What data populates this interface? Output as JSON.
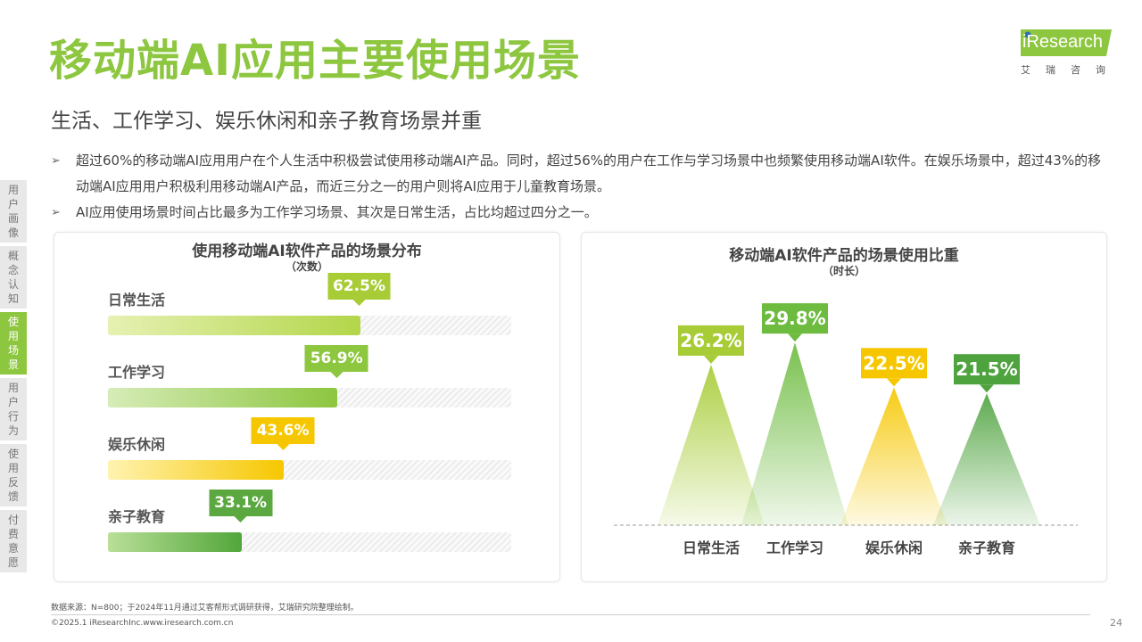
{
  "header": {
    "title": "移动端AI应用主要使用场景",
    "subtitle": "生活、工作学习、娱乐休闲和亲子教育场景并重"
  },
  "logo": {
    "brand": "iResearch",
    "cn": "艾瑞咨询"
  },
  "side_nav": [
    {
      "label": "用户画像",
      "active": false
    },
    {
      "label": "概念认知",
      "active": false
    },
    {
      "label": "使用场景",
      "active": true
    },
    {
      "label": "用户行为",
      "active": false
    },
    {
      "label": "使用反馈",
      "active": false
    },
    {
      "label": "付费意愿",
      "active": false
    }
  ],
  "bullets": [
    "超过60%的移动端AI应用用户在个人生活中积极尝试使用移动端AI产品。同时，超过56%的用户在工作与学习场景中也频繁使用移动端AI软件。在娱乐场景中，超过43%的移动端AI应用用户积极利用移动端AI产品，而近三分之一的用户则将AI应用于儿童教育场景。",
    "AI应用使用场景时间占比最多为工作学习场景、其次是日常生活，占比均超过四分之一。"
  ],
  "left_chart": {
    "title": "使用移动端AI软件产品的场景分布",
    "subtitle": "（次数）"
  },
  "right_chart": {
    "title": "移动端AI软件产品的场景使用比重",
    "subtitle": "（时长）"
  },
  "chart_data": [
    {
      "type": "bar",
      "orientation": "horizontal",
      "title": "使用移动端AI软件产品的场景分布",
      "subtitle": "（次数）",
      "categories": [
        "日常生活",
        "工作学习",
        "娱乐休闲",
        "亲子教育"
      ],
      "values": [
        62.5,
        56.9,
        43.6,
        33.1
      ],
      "value_labels": [
        "62.5%",
        "56.9%",
        "43.6%",
        "33.1%"
      ],
      "colors": [
        "#a7cc35",
        "#8dc63f",
        "#f6c700",
        "#5aa83f"
      ],
      "xlim": [
        0,
        100
      ]
    },
    {
      "type": "bar",
      "style": "triangle-peaks",
      "title": "移动端AI软件产品的场景使用比重",
      "subtitle": "（时长）",
      "categories": [
        "日常生活",
        "工作学习",
        "娱乐休闲",
        "亲子教育"
      ],
      "values": [
        26.2,
        29.8,
        22.5,
        21.5
      ],
      "value_labels": [
        "26.2%",
        "29.8%",
        "22.5%",
        "21.5%"
      ],
      "colors": [
        "#a7cc35",
        "#6dbb3f",
        "#f6c700",
        "#4fa33f"
      ],
      "ylim": [
        0,
        32
      ]
    }
  ],
  "footer": {
    "source": "数据来源：N=800；于2024年11月通过艾客帮形式调研获得，艾瑞研究院整理绘制。",
    "copyright": "©2025.1 iResearchInc.www.iresearch.com.cn",
    "page": "24"
  }
}
